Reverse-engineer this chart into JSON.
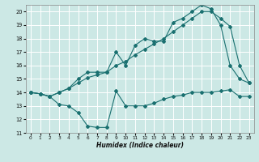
{
  "xlabel": "Humidex (Indice chaleur)",
  "xlim": [
    -0.5,
    23.5
  ],
  "ylim": [
    11,
    20.5
  ],
  "yticks": [
    11,
    12,
    13,
    14,
    15,
    16,
    17,
    18,
    19,
    20
  ],
  "xticks": [
    0,
    1,
    2,
    3,
    4,
    5,
    6,
    7,
    8,
    9,
    10,
    11,
    12,
    13,
    14,
    15,
    16,
    17,
    18,
    19,
    20,
    21,
    22,
    23
  ],
  "bg_color": "#cce8e5",
  "grid_color": "#ffffff",
  "line_color": "#1a7070",
  "line_min_x": [
    0,
    1,
    2,
    3,
    4,
    5,
    6,
    7,
    8,
    9,
    10,
    11,
    12,
    13,
    14,
    15,
    16,
    17,
    18,
    19,
    20,
    21,
    22,
    23
  ],
  "line_min_y": [
    14,
    13.9,
    13.7,
    13.1,
    13.0,
    12.5,
    11.5,
    11.4,
    11.4,
    14.1,
    13.0,
    13.0,
    13.0,
    13.2,
    13.5,
    13.7,
    13.8,
    14.0,
    14.0,
    14.0,
    14.1,
    14.2,
    13.7,
    13.7
  ],
  "line_max_x": [
    0,
    1,
    2,
    3,
    4,
    5,
    6,
    7,
    8,
    9,
    10,
    11,
    12,
    13,
    14,
    15,
    16,
    17,
    18,
    19,
    20,
    21,
    22,
    23
  ],
  "line_max_y": [
    14,
    13.9,
    13.7,
    14.0,
    14.3,
    15.0,
    15.5,
    15.5,
    15.5,
    17.0,
    16.0,
    17.5,
    18.0,
    17.8,
    17.8,
    19.2,
    19.5,
    20.0,
    20.5,
    20.2,
    19.0,
    16.0,
    15.0,
    14.7
  ],
  "line_mid_x": [
    0,
    1,
    2,
    3,
    4,
    5,
    6,
    7,
    8,
    9,
    10,
    11,
    12,
    13,
    14,
    15,
    16,
    17,
    18,
    19,
    20,
    21,
    22,
    23
  ],
  "line_mid_y": [
    14,
    13.9,
    13.7,
    14.0,
    14.3,
    14.7,
    15.1,
    15.3,
    15.5,
    16.0,
    16.3,
    16.8,
    17.2,
    17.6,
    18.0,
    18.5,
    19.0,
    19.5,
    20.0,
    20.0,
    19.5,
    18.9,
    16.0,
    14.7
  ]
}
